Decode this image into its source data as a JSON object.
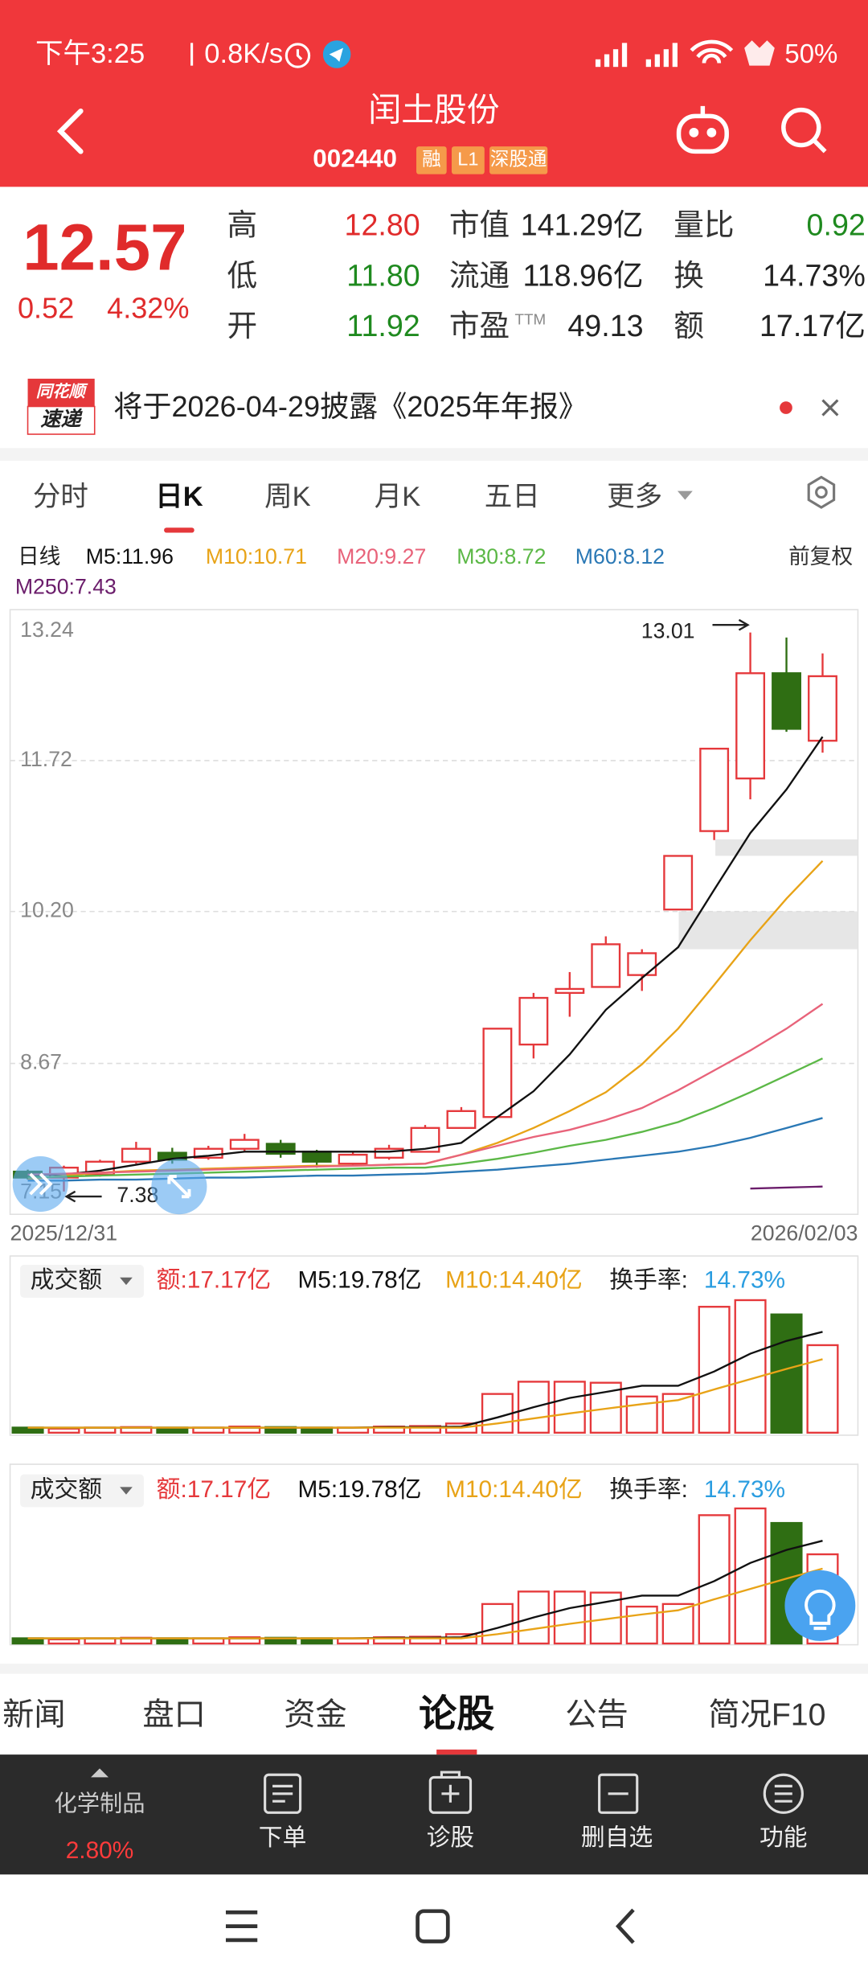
{
  "status_bar": {
    "time": "下午3:25",
    "speed": "0.8K/s",
    "battery": "50%"
  },
  "header": {
    "title": "闰土股份",
    "code": "002440",
    "badges": [
      "融",
      "L1",
      "深股通"
    ]
  },
  "quote": {
    "price": "12.57",
    "change": "0.52",
    "change_pct": "4.32%",
    "stats": [
      {
        "label": "高",
        "value": "12.80",
        "tone": "up"
      },
      {
        "label": "低",
        "value": "11.80",
        "tone": "down"
      },
      {
        "label": "开",
        "value": "11.92",
        "tone": "down"
      },
      {
        "label": "市值",
        "value": "141.29亿",
        "tone": "flat"
      },
      {
        "label": "流通",
        "value": "118.96亿",
        "tone": "flat"
      },
      {
        "label": "市盈",
        "sup": "TTM",
        "value": "49.13",
        "tone": "flat"
      },
      {
        "label": "量比",
        "value": "0.92",
        "tone": "down"
      },
      {
        "label": "换",
        "value": "14.73%",
        "tone": "flat"
      },
      {
        "label": "额",
        "value": "17.17亿",
        "tone": "flat"
      }
    ]
  },
  "notice": {
    "logo": [
      "同花顺",
      "速递"
    ],
    "text": "将于2026-04-29披露《2025年年报》"
  },
  "tabs": {
    "items": [
      "分时",
      "日K",
      "周K",
      "月K",
      "五日",
      "更多"
    ],
    "selected": 1
  },
  "chart_data": [
    {
      "type": "candlestick",
      "label": "日线",
      "adjust": "前复权",
      "categories": [
        "2025/12/31",
        null,
        null,
        null,
        null,
        null,
        null,
        null,
        null,
        null,
        null,
        null,
        null,
        null,
        null,
        null,
        null,
        null,
        null,
        null,
        null,
        null,
        "2026/02/03"
      ],
      "open": [
        7.58,
        7.52,
        7.55,
        7.68,
        7.77,
        7.72,
        7.81,
        7.86,
        7.78,
        7.66,
        7.72,
        7.78,
        8.02,
        8.13,
        8.86,
        9.38,
        9.44,
        9.56,
        10.22,
        11.01,
        11.54,
        12.6,
        11.92
      ],
      "high": [
        7.6,
        7.64,
        7.7,
        7.88,
        7.82,
        7.84,
        7.96,
        7.9,
        7.8,
        7.78,
        7.85,
        8.05,
        8.23,
        9.02,
        9.38,
        9.59,
        9.95,
        9.82,
        10.76,
        11.84,
        13.01,
        12.96,
        12.8
      ],
      "low": [
        7.5,
        7.38,
        7.53,
        7.66,
        7.66,
        7.7,
        7.78,
        7.72,
        7.62,
        7.64,
        7.7,
        7.78,
        8.02,
        8.13,
        8.72,
        9.14,
        9.44,
        9.4,
        10.22,
        10.92,
        11.33,
        12.01,
        11.8
      ],
      "close": [
        7.52,
        7.62,
        7.68,
        7.81,
        7.7,
        7.81,
        7.9,
        7.76,
        7.68,
        7.75,
        7.81,
        8.02,
        8.19,
        9.02,
        9.33,
        9.42,
        9.87,
        9.78,
        10.76,
        11.84,
        12.6,
        12.04,
        12.57
      ],
      "up_color": "#e5383b",
      "down_color": "#2f6e13",
      "ylim": [
        7.15,
        13.24
      ],
      "yticks": [
        7.15,
        8.67,
        {
          "value": 10.2,
          "label": "10.20"
        },
        11.72,
        13.24
      ],
      "grid": true,
      "annotations": [
        {
          "text": "13.01"
        },
        {
          "text": "7.38"
        }
      ],
      "series": [
        {
          "name": "M5:11.96",
          "color": "#111111",
          "values": [
            7.55,
            7.55,
            7.59,
            7.65,
            7.71,
            7.74,
            7.78,
            7.78,
            7.78,
            7.78,
            7.78,
            7.81,
            7.87,
            8.13,
            8.39,
            8.76,
            9.21,
            9.53,
            9.84,
            10.42,
            10.99,
            11.43,
            11.96
          ]
        },
        {
          "name": "M10:10.71",
          "color": "#e8a317",
          "values": [
            7.5,
            7.54,
            7.57,
            7.59,
            7.6,
            7.61,
            7.62,
            7.63,
            7.64,
            7.64,
            7.65,
            7.66,
            7.75,
            7.87,
            8.02,
            8.19,
            8.38,
            8.66,
            9.02,
            9.46,
            9.91,
            10.33,
            10.71
          ]
        },
        {
          "name": "M20:9.27",
          "color": "#e8637a",
          "values": [
            7.55,
            7.56,
            7.57,
            7.58,
            7.59,
            7.6,
            7.61,
            7.62,
            7.63,
            7.64,
            7.65,
            7.66,
            7.75,
            7.84,
            7.93,
            8.0,
            8.1,
            8.22,
            8.4,
            8.6,
            8.8,
            9.02,
            9.27
          ]
        },
        {
          "name": "M30:8.72",
          "color": "#5cb847",
          "values": [
            7.52,
            7.53,
            7.54,
            7.55,
            7.56,
            7.57,
            7.58,
            7.59,
            7.6,
            7.61,
            7.62,
            7.62,
            7.66,
            7.71,
            7.77,
            7.84,
            7.9,
            7.98,
            8.08,
            8.22,
            8.38,
            8.55,
            8.72
          ]
        },
        {
          "name": "M60:8.12",
          "color": "#2a78b5",
          "values": [
            7.49,
            7.49,
            7.5,
            7.5,
            7.51,
            7.52,
            7.52,
            7.53,
            7.54,
            7.54,
            7.55,
            7.56,
            7.58,
            7.6,
            7.63,
            7.66,
            7.7,
            7.74,
            7.78,
            7.84,
            7.92,
            8.02,
            8.12
          ]
        },
        {
          "name": "M250:7.43",
          "color": "#6b1d6b",
          "values": [
            null,
            null,
            null,
            null,
            null,
            null,
            null,
            null,
            null,
            null,
            null,
            null,
            null,
            null,
            null,
            null,
            null,
            null,
            null,
            null,
            7.41,
            7.42,
            7.43
          ]
        }
      ]
    },
    {
      "type": "volume",
      "title": "成交额",
      "current": "额:17.17亿",
      "turnover_label": "换手率:",
      "turnover": "14.73%",
      "values": [
        1.0,
        0.8,
        1.0,
        1.1,
        1.0,
        1.0,
        1.2,
        1.1,
        1.0,
        1.0,
        1.2,
        1.3,
        1.8,
        7.6,
        10.0,
        10.0,
        9.8,
        7.1,
        7.6,
        24.7,
        26.0,
        23.2,
        17.17
      ],
      "series": [
        {
          "name": "M5:19.78亿",
          "color": "#111111",
          "values": [
            1.0,
            1.0,
            1.0,
            1.0,
            1.0,
            1.0,
            1.0,
            1.0,
            1.0,
            1.0,
            1.1,
            1.1,
            1.2,
            3.0,
            5.0,
            6.8,
            8.0,
            9.2,
            9.2,
            12.0,
            15.5,
            18.0,
            19.78
          ]
        },
        {
          "name": "M10:14.40亿",
          "color": "#e8a317",
          "values": [
            1.0,
            1.0,
            1.0,
            1.0,
            1.0,
            1.0,
            1.0,
            1.0,
            1.0,
            1.0,
            1.0,
            1.0,
            1.0,
            1.8,
            2.8,
            3.8,
            4.7,
            5.6,
            6.4,
            8.5,
            10.5,
            12.5,
            14.4
          ]
        }
      ]
    },
    {
      "type": "volume",
      "title": "成交额",
      "current": "额:17.17亿",
      "turnover_label": "换手率:",
      "turnover": "14.73%",
      "values": [
        1.0,
        0.8,
        1.0,
        1.1,
        1.0,
        1.0,
        1.2,
        1.1,
        1.0,
        1.0,
        1.2,
        1.3,
        1.8,
        7.6,
        10.0,
        10.0,
        9.8,
        7.1,
        7.6,
        24.7,
        26.0,
        23.2,
        17.17
      ],
      "series": [
        {
          "name": "M5:19.78亿",
          "color": "#111111",
          "values": [
            1.0,
            1.0,
            1.0,
            1.0,
            1.0,
            1.0,
            1.0,
            1.0,
            1.0,
            1.0,
            1.1,
            1.1,
            1.2,
            3.0,
            5.0,
            6.8,
            8.0,
            9.2,
            9.2,
            12.0,
            15.5,
            18.0,
            19.78
          ]
        },
        {
          "name": "M10:14.40亿",
          "color": "#e8a317",
          "values": [
            1.0,
            1.0,
            1.0,
            1.0,
            1.0,
            1.0,
            1.0,
            1.0,
            1.0,
            1.0,
            1.0,
            1.0,
            1.0,
            1.8,
            2.8,
            3.8,
            4.7,
            5.6,
            6.4,
            8.5,
            10.5,
            12.5,
            14.4
          ]
        }
      ]
    }
  ],
  "bottom_tabs": {
    "items": [
      "新闻",
      "盘口",
      "资金",
      "论股",
      "公告",
      "简况F10"
    ],
    "selected": 3
  },
  "action_bar": {
    "sector": "化学制品",
    "sector_change": "2.80%",
    "items": [
      "下单",
      "诊股",
      "删自选",
      "功能"
    ]
  }
}
